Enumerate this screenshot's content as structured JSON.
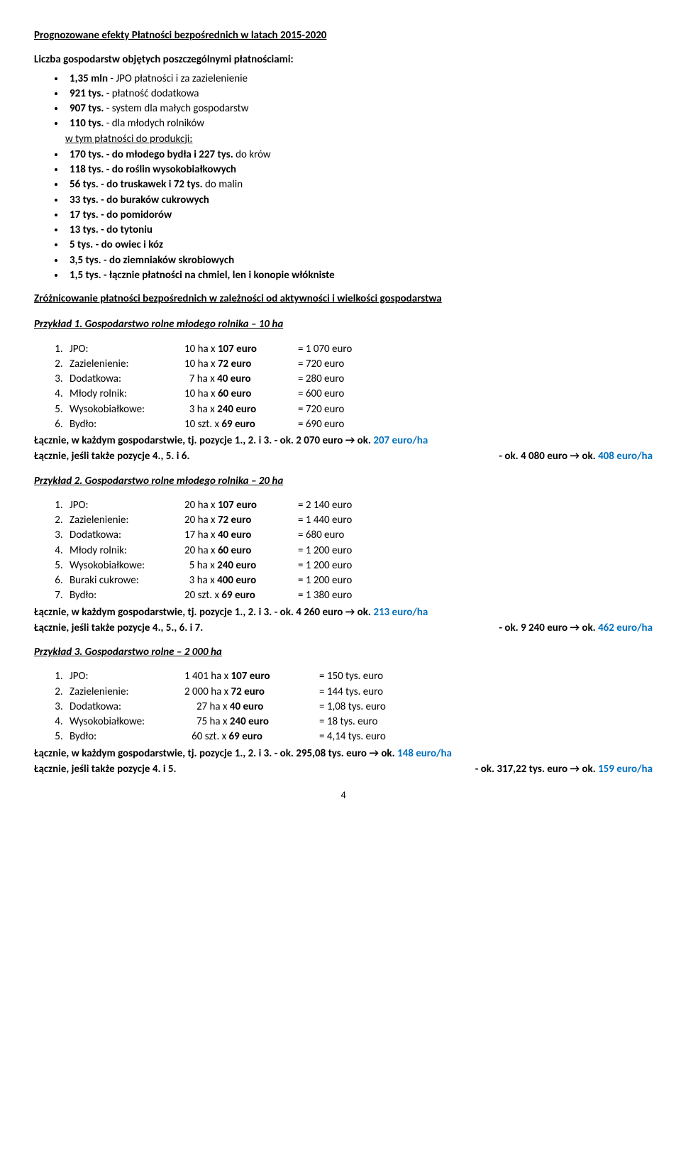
{
  "title": "Prognozowane efekty Płatności bezpośrednich w latach 2015-2020",
  "intro": "Liczba gospodarstw objętych poszczególnymi płatnościami:",
  "bullets": [
    {
      "b": "1,35 mln",
      "rest": " - JPO płatności i za zazielenienie"
    },
    {
      "b": "921 tys.",
      "rest": " - płatność dodatkowa"
    },
    {
      "b": "907 tys.",
      "rest": " - system dla małych gospodarstw"
    },
    {
      "b": "110 tys.",
      "rest": " - dla młodych rolników"
    },
    {
      "underline_prefix": "w tym płatności do produkcji:",
      "pre": true
    },
    {
      "b": "170 tys.",
      "rest_b": " - do młodego bydła i 227 tys.",
      "rest": " do krów"
    },
    {
      "b": "118 tys.",
      "rest_b": " - do roślin wysokobiałkowych"
    },
    {
      "b": "56 tys.",
      "rest_b": " - do truskawek i 72 tys.",
      "rest": " do malin"
    },
    {
      "b": "33 tys.",
      "rest_b": " - do buraków cukrowych"
    },
    {
      "b": "17 tys.",
      "rest_b": " - do pomidorów"
    },
    {
      "b": "13 tys.",
      "rest_b": " - do tytoniu"
    },
    {
      "b": "5 tys.",
      "rest_b": " - do owiec i kóz"
    },
    {
      "b": "3,5 tys.",
      "rest_b": " - do ziemniaków skrobiowych"
    },
    {
      "b": "1,5 tys.",
      "rest_b": " - łącznie płatności na chmiel, len i konopie włókniste"
    }
  ],
  "section2": "Zróżnicowanie płatności bezpośrednich w zależności od aktywności i wielkości gospodarstwa",
  "ex1": {
    "title": "Przykład 1. Gospodarstwo rolne młodego rolnika – 10 ha",
    "rows": [
      {
        "label": "JPO:",
        "calc_a": "10 ha x ",
        "calc_b": "107 euro",
        "eq": "= 1 070 euro"
      },
      {
        "label": "Zazielenienie:",
        "calc_a": "10 ha x ",
        "calc_b": "72 euro",
        "eq": "= 720 euro"
      },
      {
        "label": "Dodatkowa:",
        "calc_a": "  7 ha x ",
        "calc_b": "40 euro",
        "eq": "= 280 euro"
      },
      {
        "label": "Młody rolnik:",
        "calc_a": "10 ha x ",
        "calc_b": "60 euro",
        "eq": "= 600 euro"
      },
      {
        "label": "Wysokobiałkowe:",
        "calc_a": "  3 ha x ",
        "calc_b": "240 euro",
        "eq": "= 720 euro"
      },
      {
        "label": "Bydło:",
        "calc_a": "10 szt. x ",
        "calc_b": "69 euro",
        "eq": "= 690 euro"
      }
    ],
    "sum1_a": "Łącznie, w każdym gospodarstwie, tj. pozycje 1., 2. i 3. - ok. 2 070 euro → ok. ",
    "sum1_b": "207 euro/ha",
    "sum2_a": "Łącznie, jeśli także pozycje 4., 5. i 6.",
    "sum2_mid": "- ok. 4 080 euro → ok. ",
    "sum2_b": "408 euro/ha"
  },
  "ex2": {
    "title": "Przykład 2. Gospodarstwo rolne młodego rolnika – 20 ha",
    "rows": [
      {
        "label": "JPO:",
        "calc_a": "20 ha x ",
        "calc_b": "107 euro",
        "eq": "= 2 140 euro"
      },
      {
        "label": "Zazielenienie:",
        "calc_a": "20 ha x ",
        "calc_b": "72 euro",
        "eq": "= 1 440 euro"
      },
      {
        "label": "Dodatkowa:",
        "calc_a": "17 ha x ",
        "calc_b": "40 euro",
        "eq": "= 680 euro"
      },
      {
        "label": "Młody rolnik:",
        "calc_a": "20 ha x ",
        "calc_b": "60 euro",
        "eq": "= 1 200 euro"
      },
      {
        "label": "Wysokobiałkowe:",
        "calc_a": "  5 ha x ",
        "calc_b": "240 euro",
        "eq": "= 1 200 euro"
      },
      {
        "label": "Buraki cukrowe:",
        "calc_a": "  3 ha x ",
        "calc_b": "400 euro",
        "eq": "= 1 200 euro"
      },
      {
        "label": "Bydło:",
        "calc_a": "20 szt. x ",
        "calc_b": "69 euro",
        "eq": "= 1 380 euro"
      }
    ],
    "sum1_a": "Łącznie, w każdym gospodarstwie, tj. pozycje 1., 2. i 3. - ok. 4 260 euro → ok. ",
    "sum1_b": "213 euro/ha",
    "sum2_a": "Łącznie, jeśli także pozycje  4., 5., 6. i 7.",
    "sum2_mid": "- ok. 9 240 euro → ok. ",
    "sum2_b": "462 euro/ha"
  },
  "ex3": {
    "title": "Przykład 3. Gospodarstwo rolne – 2 000 ha",
    "rows": [
      {
        "label": "JPO:",
        "calc_a": "1 401 ha x ",
        "calc_b": "107 euro",
        "eq": "= 150 tys. euro"
      },
      {
        "label": "Zazielenienie:",
        "calc_a": "2 000 ha x ",
        "calc_b": "72 euro",
        "eq": "= 144 tys. euro"
      },
      {
        "label": "Dodatkowa:",
        "calc_a": "     27 ha x ",
        "calc_b": "40 euro",
        "eq": "= 1,08 tys. euro"
      },
      {
        "label": "Wysokobiałkowe:",
        "calc_a": "     75 ha x ",
        "calc_b": "240 euro",
        "eq": "= 18 tys. euro"
      },
      {
        "label": "Bydło:",
        "calc_a": "   60 szt. x ",
        "calc_b": "69 euro",
        "eq": "= 4,14 tys. euro"
      }
    ],
    "sum1_a": "Łącznie, w każdym gospodarstwie,  tj. pozycje 1., 2. i 3. -  ok. 295,08 tys. euro → ok. ",
    "sum1_b": "148 euro/ha",
    "sum2_a": "Łącznie, jeśli także pozycje  4. i 5.",
    "sum2_mid": "-  ok. 317,22 tys. euro → ok. ",
    "sum2_b": "159 euro/ha"
  },
  "page_num": "4"
}
